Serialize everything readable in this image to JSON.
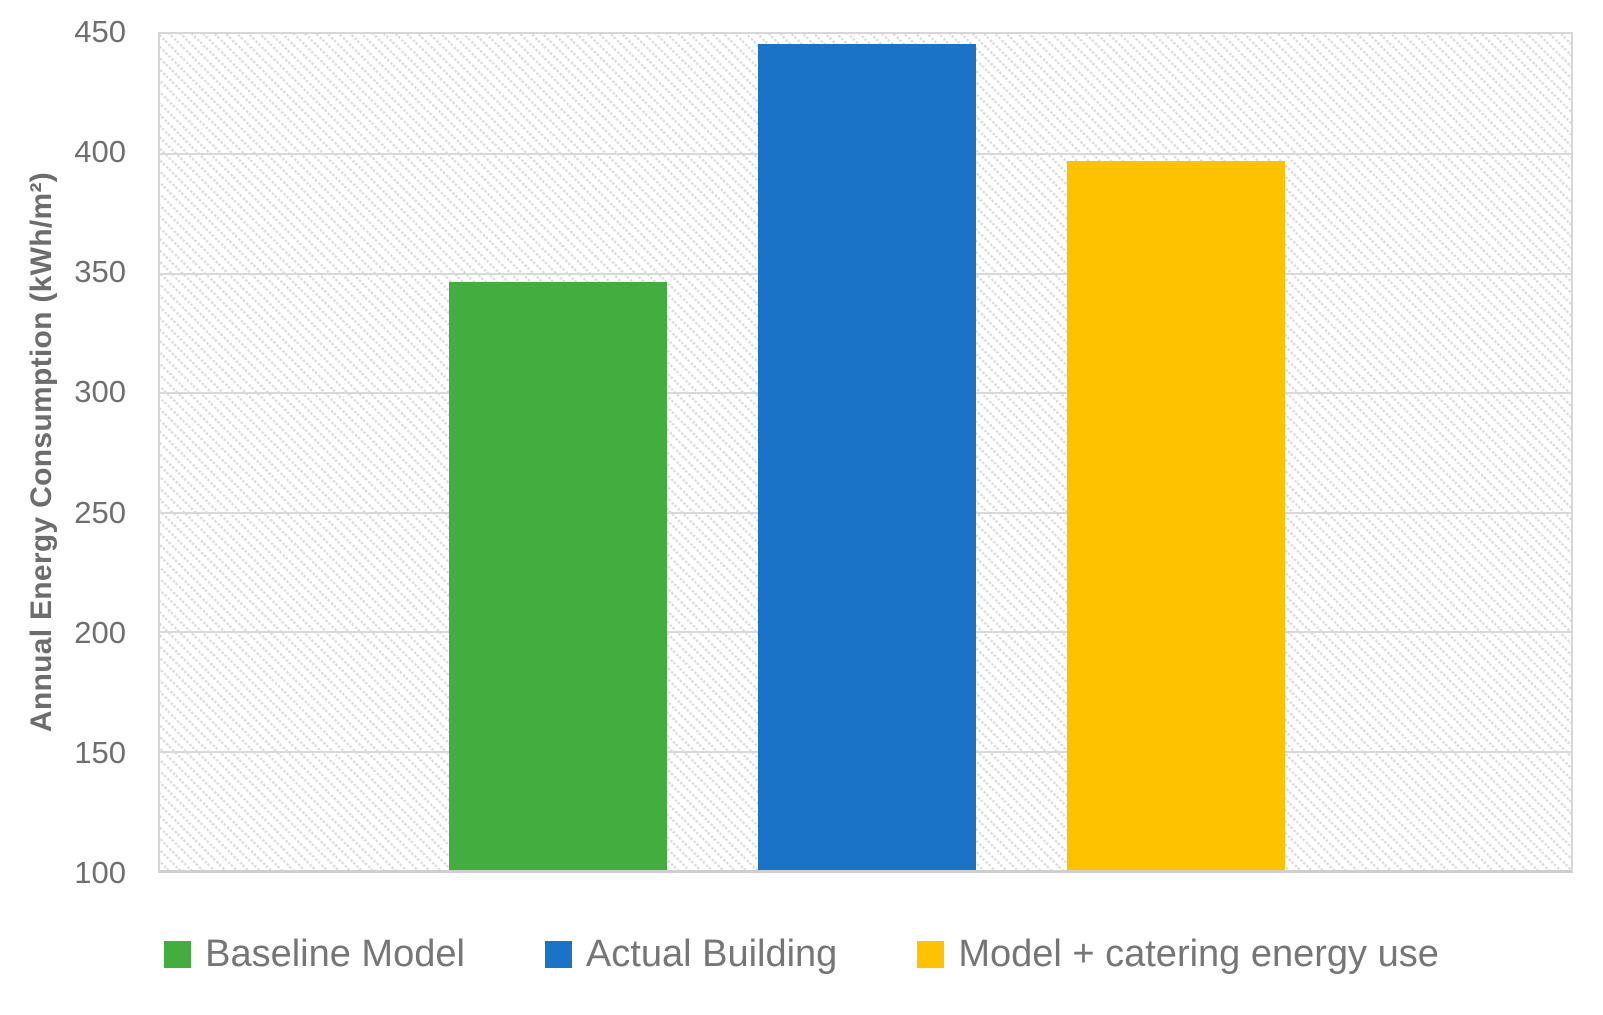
{
  "chart_data": {
    "type": "bar",
    "title": "",
    "xlabel": "",
    "ylabel": "Annual Energy Consumption (kWh/m²)",
    "ylim": [
      100,
      450
    ],
    "yticks": [
      100,
      150,
      200,
      250,
      300,
      350,
      400,
      450
    ],
    "grid": true,
    "plot_background": "light-downward-diagonal-hatch",
    "legend_position": "bottom",
    "categories": [
      ""
    ],
    "series": [
      {
        "name": "Baseline Model",
        "color": "#44AD40",
        "values": [
          346
        ]
      },
      {
        "name": "Actual Building",
        "color": "#1B73C8",
        "values": [
          446
        ]
      },
      {
        "name": "Model + catering energy use",
        "color": "#FFC200",
        "values": [
          397
        ]
      }
    ]
  },
  "colors": {
    "gridline": "#d9d9d9",
    "plot_border": "#d7d7d7",
    "hatch": "#dcdcdc",
    "axis_text": "#6f6f6f",
    "legend_text": "#767676"
  }
}
